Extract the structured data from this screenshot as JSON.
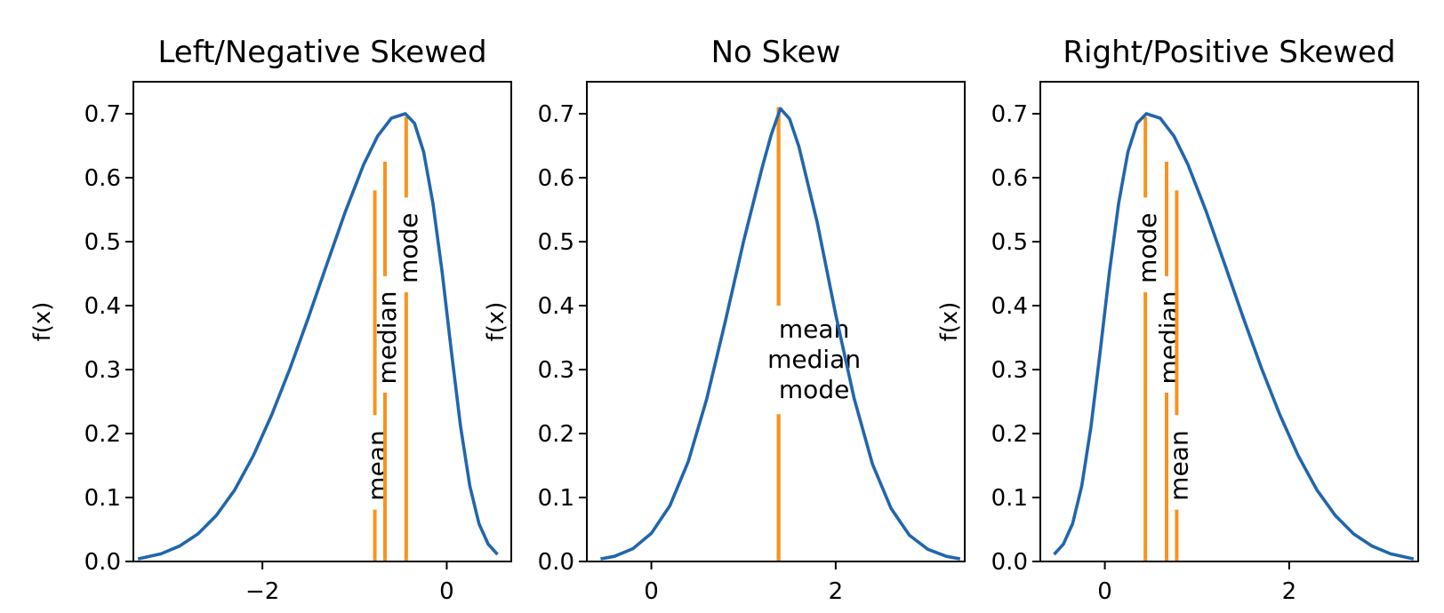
{
  "chart_data": [
    {
      "type": "line",
      "title": "Left/Negative Skewed",
      "xlabel": "",
      "ylabel": "f(x)",
      "xlim": [
        -3.4,
        0.7
      ],
      "ylim": [
        0,
        0.75
      ],
      "xticks": [
        -2,
        0
      ],
      "xtick_labels": [
        "−2",
        "0"
      ],
      "yticks": [
        0,
        0.1,
        0.2,
        0.3,
        0.4,
        0.5,
        0.6,
        0.7
      ],
      "ytick_labels": [
        "0.0",
        "0.1",
        "0.2",
        "0.3",
        "0.4",
        "0.5",
        "0.6",
        "0.7"
      ],
      "grid": false,
      "series": [
        {
          "values": [
            [
              -3.35,
              0.004
            ],
            [
              -3.1,
              0.012
            ],
            [
              -2.9,
              0.024
            ],
            [
              -2.7,
              0.043
            ],
            [
              -2.5,
              0.072
            ],
            [
              -2.3,
              0.112
            ],
            [
              -2.1,
              0.165
            ],
            [
              -1.9,
              0.229
            ],
            [
              -1.7,
              0.302
            ],
            [
              -1.5,
              0.382
            ],
            [
              -1.3,
              0.465
            ],
            [
              -1.1,
              0.547
            ],
            [
              -0.9,
              0.621
            ],
            [
              -0.75,
              0.665
            ],
            [
              -0.6,
              0.693
            ],
            [
              -0.45,
              0.7
            ],
            [
              -0.35,
              0.685
            ],
            [
              -0.25,
              0.64
            ],
            [
              -0.15,
              0.56
            ],
            [
              -0.05,
              0.452
            ],
            [
              0.05,
              0.329
            ],
            [
              0.15,
              0.211
            ],
            [
              0.25,
              0.118
            ],
            [
              0.35,
              0.059
            ],
            [
              0.45,
              0.027
            ],
            [
              0.55,
              0.011
            ]
          ]
        }
      ],
      "markers": [
        {
          "label": "mean",
          "x": -0.78,
          "height": 0.58,
          "text_y": 0.13
        },
        {
          "label": "median",
          "x": -0.67,
          "height": 0.625,
          "text_y": 0.33
        },
        {
          "label": "mode",
          "x": -0.44,
          "height": 0.695,
          "text_y": 0.47
        }
      ]
    },
    {
      "type": "line",
      "title": "No Skew",
      "xlabel": "",
      "ylabel": "f(x)",
      "xlim": [
        -0.7,
        3.4
      ],
      "ylim": [
        0,
        0.75
      ],
      "xticks": [
        0,
        2
      ],
      "xtick_labels": [
        "0",
        "2"
      ],
      "yticks": [
        0,
        0.1,
        0.2,
        0.3,
        0.4,
        0.5,
        0.6,
        0.7
      ],
      "ytick_labels": [
        "0.0",
        "0.1",
        "0.2",
        "0.3",
        "0.4",
        "0.5",
        "0.6",
        "0.7"
      ],
      "grid": false,
      "series": [
        {
          "values": [
            [
              -0.55,
              0.004
            ],
            [
              -0.4,
              0.008
            ],
            [
              -0.2,
              0.02
            ],
            [
              0.0,
              0.044
            ],
            [
              0.2,
              0.087
            ],
            [
              0.4,
              0.156
            ],
            [
              0.6,
              0.254
            ],
            [
              0.8,
              0.374
            ],
            [
              1.0,
              0.5
            ],
            [
              1.2,
              0.615
            ],
            [
              1.3,
              0.667
            ],
            [
              1.4,
              0.708
            ],
            [
              1.5,
              0.692
            ],
            [
              1.6,
              0.649
            ],
            [
              1.8,
              0.53
            ],
            [
              2.0,
              0.386
            ],
            [
              2.2,
              0.255
            ],
            [
              2.4,
              0.152
            ],
            [
              2.6,
              0.083
            ],
            [
              2.8,
              0.041
            ],
            [
              3.0,
              0.019
            ],
            [
              3.2,
              0.008
            ],
            [
              3.35,
              0.004
            ]
          ]
        }
      ],
      "markers": [
        {
          "label": "mean",
          "x": 1.38,
          "height": 0.71
        },
        {
          "label": "median",
          "x": 1.38,
          "height": 0.71
        },
        {
          "label": "mode",
          "x": 1.38,
          "height": 0.71
        }
      ],
      "annotation_lines": [
        "mean",
        "median",
        "mode"
      ]
    },
    {
      "type": "line",
      "title": "Right/Positive Skewed",
      "xlabel": "",
      "ylabel": "f(x)",
      "xlim": [
        -0.7,
        3.4
      ],
      "ylim": [
        0,
        0.75
      ],
      "xticks": [
        0,
        2
      ],
      "xtick_labels": [
        "0",
        "2"
      ],
      "yticks": [
        0,
        0.1,
        0.2,
        0.3,
        0.4,
        0.5,
        0.6,
        0.7
      ],
      "ytick_labels": [
        "0.0",
        "0.1",
        "0.2",
        "0.3",
        "0.4",
        "0.5",
        "0.6",
        "0.7"
      ],
      "grid": false,
      "series": [
        {
          "values": [
            [
              -0.55,
              0.011
            ],
            [
              -0.45,
              0.027
            ],
            [
              -0.35,
              0.059
            ],
            [
              -0.25,
              0.118
            ],
            [
              -0.15,
              0.211
            ],
            [
              -0.05,
              0.329
            ],
            [
              0.05,
              0.452
            ],
            [
              0.15,
              0.56
            ],
            [
              0.25,
              0.64
            ],
            [
              0.35,
              0.685
            ],
            [
              0.45,
              0.7
            ],
            [
              0.6,
              0.693
            ],
            [
              0.75,
              0.665
            ],
            [
              0.9,
              0.621
            ],
            [
              1.1,
              0.547
            ],
            [
              1.3,
              0.465
            ],
            [
              1.5,
              0.382
            ],
            [
              1.7,
              0.302
            ],
            [
              1.9,
              0.229
            ],
            [
              2.1,
              0.165
            ],
            [
              2.3,
              0.112
            ],
            [
              2.5,
              0.072
            ],
            [
              2.7,
              0.043
            ],
            [
              2.9,
              0.024
            ],
            [
              3.1,
              0.012
            ],
            [
              3.35,
              0.004
            ]
          ]
        }
      ],
      "markers": [
        {
          "label": "mode",
          "x": 0.44,
          "height": 0.695,
          "text_y": 0.47
        },
        {
          "label": "median",
          "x": 0.67,
          "height": 0.625,
          "text_y": 0.33
        },
        {
          "label": "mean",
          "x": 0.78,
          "height": 0.58,
          "text_y": 0.13
        }
      ]
    }
  ],
  "colors": {
    "curve": "#2166ac",
    "marker": "#f7931e",
    "axes": "#000000",
    "background": "#ffffff"
  }
}
